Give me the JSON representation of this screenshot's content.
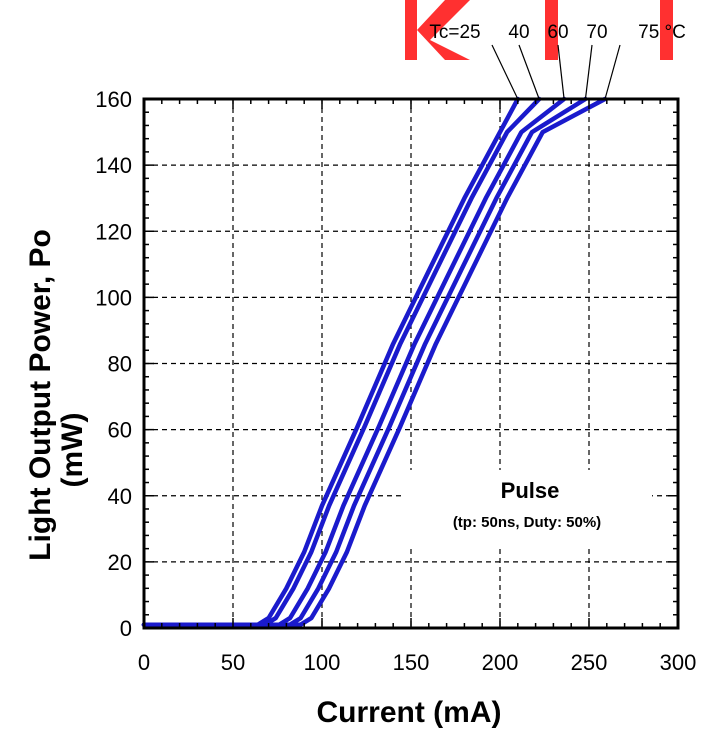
{
  "chart_data": {
    "type": "line",
    "title": "",
    "xlabel": "Current (mA)",
    "ylabel": "Light Output Power, Po (mW)",
    "ylabel_lines": [
      "Light Output Power, Po",
      "(mW)"
    ],
    "xlim": [
      0,
      300
    ],
    "ylim": [
      0,
      160
    ],
    "xticks": [
      0,
      50,
      100,
      150,
      200,
      250,
      300
    ],
    "yticks": [
      0,
      20,
      40,
      60,
      80,
      100,
      120,
      140,
      160
    ],
    "grid": true,
    "temperature_labels": [
      "Tc=25",
      "40",
      "60",
      "70",
      "75 °C"
    ],
    "annotation": {
      "title": "Pulse",
      "subtitle": "(tp: 50ns, Duty: 50%)"
    },
    "series": [
      {
        "x": [
          0,
          64,
          70,
          80,
          90,
          100,
          120,
          140,
          160,
          180,
          200,
          210
        ],
        "y": [
          1,
          1,
          3,
          12,
          23,
          37,
          61,
          86,
          108,
          130,
          150,
          160
        ]
      },
      {
        "x": [
          0,
          68,
          74,
          84,
          94,
          104,
          124,
          144,
          164,
          184,
          204,
          222
        ],
        "y": [
          1,
          1,
          3,
          12,
          23,
          37,
          61,
          86,
          108,
          130,
          150,
          160
        ]
      },
      {
        "x": [
          0,
          76,
          82,
          92,
          102,
          112,
          132,
          152,
          172,
          192,
          212,
          236
        ],
        "y": [
          1,
          1,
          3,
          12,
          23,
          37,
          61,
          86,
          108,
          130,
          150,
          160
        ]
      },
      {
        "x": [
          0,
          82,
          88,
          98,
          108,
          118,
          138,
          158,
          178,
          198,
          218,
          248
        ],
        "y": [
          1,
          1,
          3,
          12,
          23,
          37,
          61,
          86,
          108,
          130,
          150,
          160
        ]
      },
      {
        "x": [
          0,
          88,
          94,
          104,
          114,
          124,
          144,
          164,
          184,
          204,
          224,
          259
        ],
        "y": [
          1,
          1,
          3,
          12,
          23,
          37,
          61,
          86,
          108,
          130,
          150,
          160
        ]
      }
    ],
    "colors": {
      "series": "#1a1acc",
      "watermark": "#ff3030"
    }
  }
}
